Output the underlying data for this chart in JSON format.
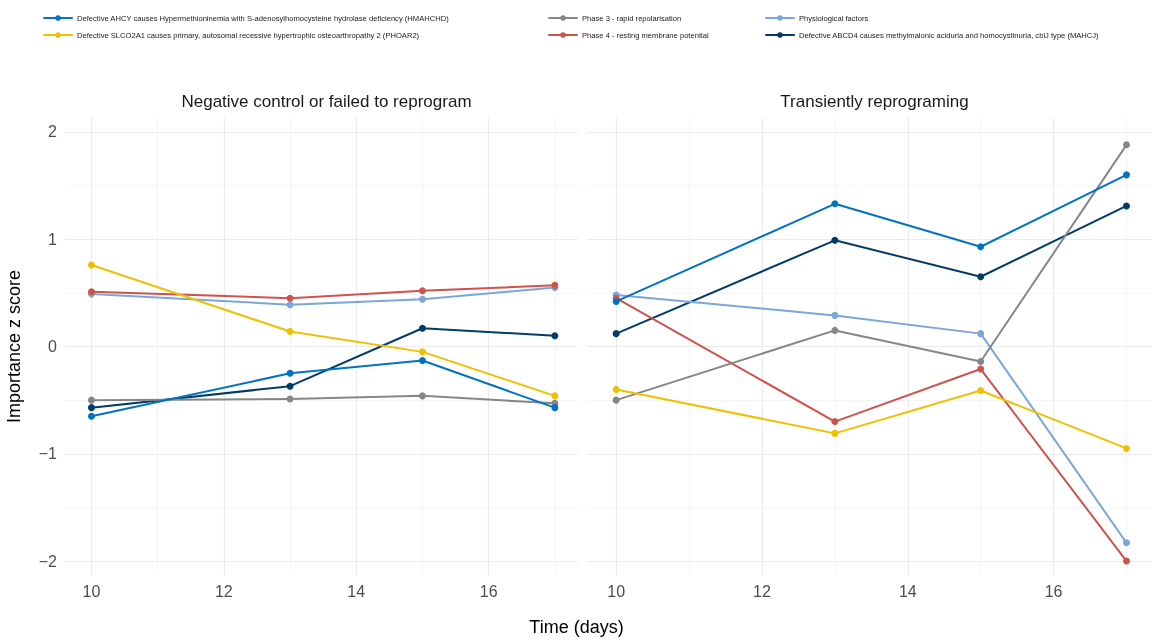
{
  "chart_data": [
    {
      "type": "line",
      "title": "Negative control or failed to reprogram",
      "xlabel": "Time (days)",
      "ylabel": "Importance z score",
      "x": [
        10,
        13,
        15,
        17
      ],
      "xlim": [
        9.6,
        17.35
      ],
      "xticks": [
        10,
        12,
        14,
        16
      ],
      "ylim": [
        -2.13,
        2.13
      ],
      "yticks": [
        -2,
        -1,
        0,
        1,
        2
      ],
      "grid": true,
      "legend": "top",
      "marker": "circle",
      "line_style": "solid",
      "series": [
        {
          "name": "Defective AHCY causes Hypermethioninemia with S-adenosylhomocysteine hydrolase deficiency (HMAHCHD)",
          "color": "#0073c2",
          "values": [
            -0.65,
            -0.25,
            -0.13,
            -0.57
          ]
        },
        {
          "name": "Defective SLCO2A1 causes primary, autosomal recessive hypertrophic osteoarthropathy 2 (PHOAR2)",
          "color": "#efc000",
          "values": [
            0.76,
            0.14,
            -0.05,
            -0.46
          ]
        },
        {
          "name": "Phase 3 - rapid repolarisation",
          "color": "#868686",
          "values": [
            -0.5,
            -0.49,
            -0.46,
            -0.53
          ]
        },
        {
          "name": "Phase 4 - resting membrane potential",
          "color": "#cd534c",
          "values": [
            0.51,
            0.45,
            0.52,
            0.57
          ]
        },
        {
          "name": "Physiological factors",
          "color": "#7aa6dc",
          "values": [
            0.49,
            0.39,
            0.44,
            0.55
          ]
        },
        {
          "name": "Defective ABCD4 causes methylmalonic aciduria and homocystinuria, cblJ type (MAHCJ)",
          "color": "#003c67",
          "values": [
            -0.57,
            -0.37,
            0.17,
            0.1
          ]
        }
      ]
    },
    {
      "type": "line",
      "title": "Transiently reprograming",
      "x": [
        10,
        13,
        15,
        17
      ],
      "xlim": [
        9.6,
        17.35
      ],
      "xticks": [
        10,
        12,
        14,
        16
      ],
      "ylim": [
        -2.13,
        2.13
      ],
      "yticks": [
        -2,
        -1,
        0,
        1,
        2
      ],
      "grid": true,
      "marker": "circle",
      "line_style": "solid",
      "tick_labels": "x",
      "series": [
        {
          "color": "#0073c2",
          "values": [
            0.42,
            1.33,
            0.93,
            1.6
          ]
        },
        {
          "color": "#efc000",
          "values": [
            -0.4,
            -0.81,
            -0.41,
            -0.95
          ]
        },
        {
          "color": "#868686",
          "values": [
            -0.5,
            0.15,
            -0.14,
            1.88
          ]
        },
        {
          "color": "#cd534c",
          "values": [
            0.45,
            -0.7,
            -0.21,
            -2.0
          ]
        },
        {
          "color": "#7aa6dc",
          "values": [
            0.48,
            0.29,
            0.12,
            -1.83
          ]
        },
        {
          "color": "#003c67",
          "values": [
            0.12,
            0.99,
            0.65,
            1.31
          ]
        }
      ]
    }
  ]
}
